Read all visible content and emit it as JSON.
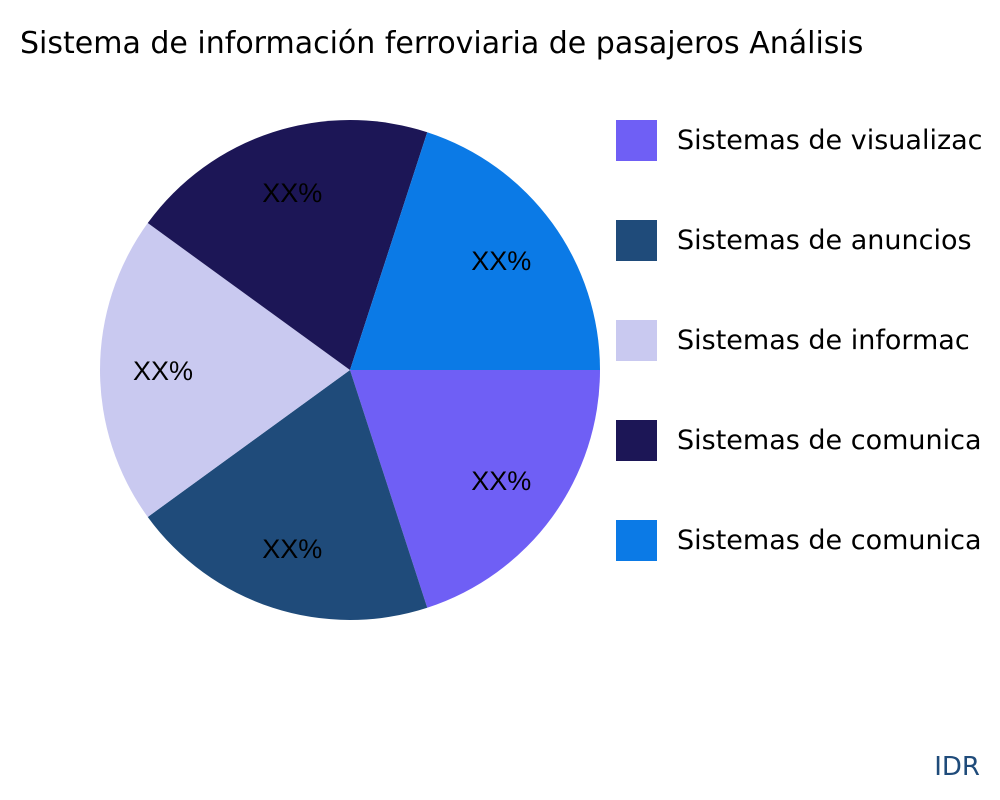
{
  "chart_data": {
    "type": "pie",
    "title": "Sistema de información ferroviaria de pasajeros Análisis",
    "slices": [
      {
        "label": "Sistemas de visualizac",
        "value": 20,
        "data_label": "XX%",
        "color": "#6f5ff5"
      },
      {
        "label": "Sistemas de anuncios",
        "value": 20,
        "data_label": "XX%",
        "color": "#1f4b7a"
      },
      {
        "label": "Sistemas de informac",
        "value": 20,
        "data_label": "XX%",
        "color": "#c9c9f0"
      },
      {
        "label": "Sistemas de comunica",
        "value": 20,
        "data_label": "XX%",
        "color": "#1c1656"
      },
      {
        "label": "Sistemas de comunica",
        "value": 20,
        "data_label": "XX%",
        "color": "#0b7ae6"
      }
    ],
    "legend_position": "right"
  },
  "brand": "IDR"
}
